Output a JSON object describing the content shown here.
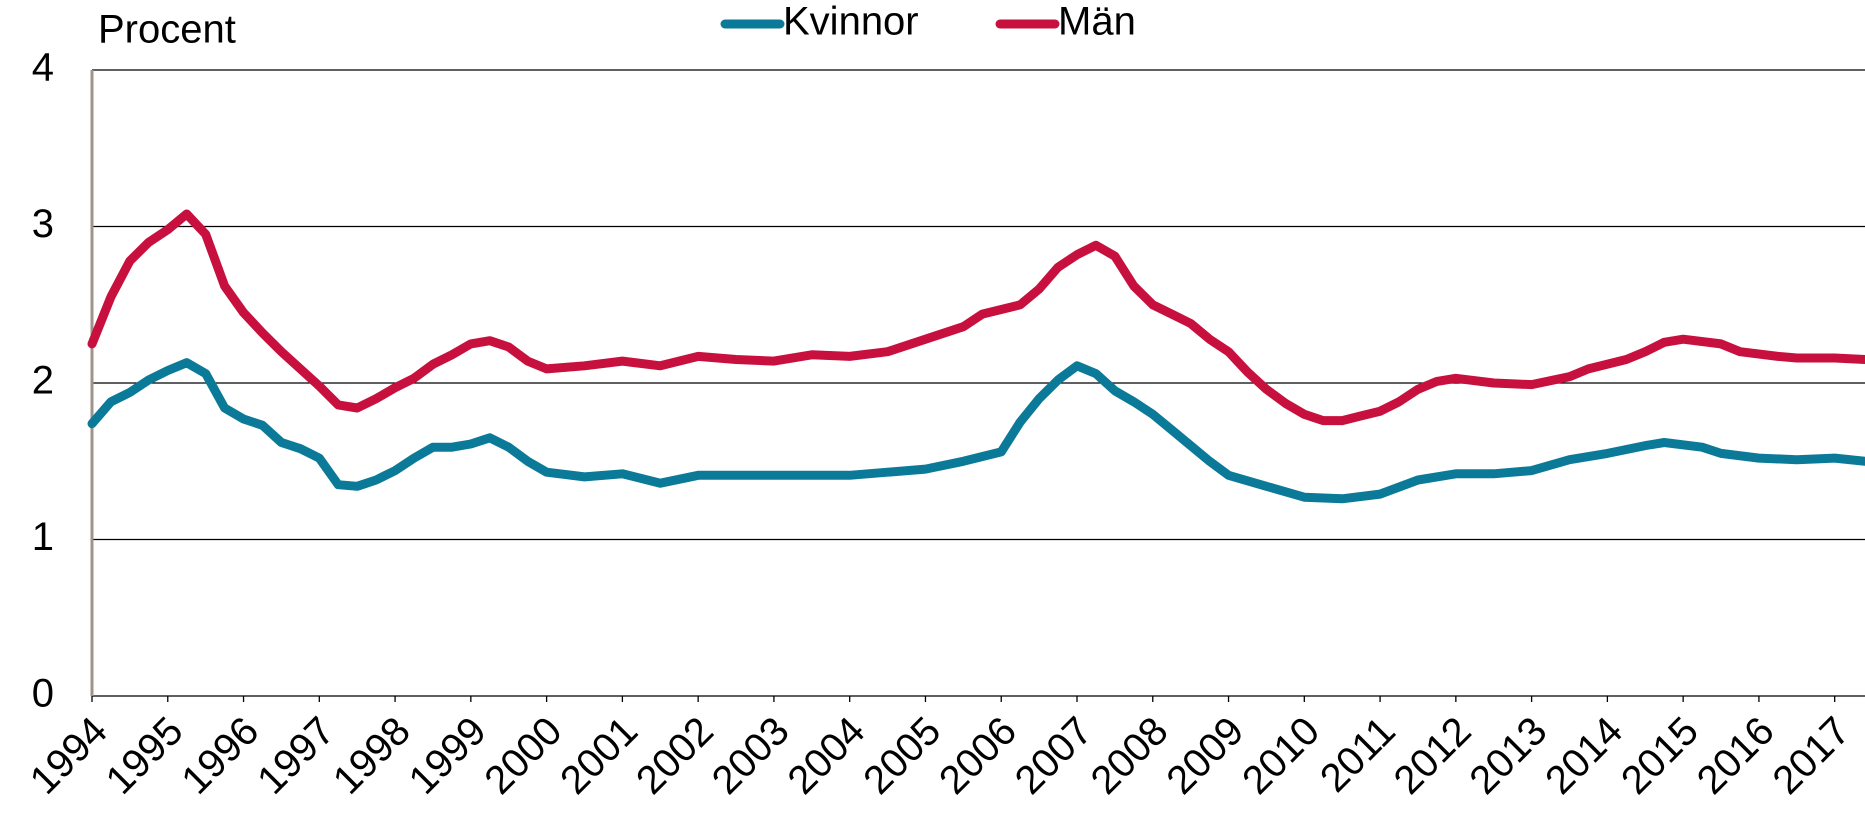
{
  "chart_data": {
    "type": "line",
    "y_label": "Procent",
    "xlim": [
      1994,
      2017.4
    ],
    "xticks": [
      1994,
      1995,
      1996,
      1997,
      1998,
      1999,
      2000,
      2001,
      2002,
      2003,
      2004,
      2005,
      2006,
      2007,
      2008,
      2009,
      2010,
      2011,
      2012,
      2013,
      2014,
      2015,
      2016,
      2017
    ],
    "ylim": [
      0,
      4
    ],
    "yticks": [
      0,
      1,
      2,
      3,
      4
    ],
    "grid": true,
    "series": [
      {
        "name": "Kvinnor",
        "color": "#0b7a98",
        "x": [
          1994,
          1994.25,
          1994.5,
          1994.75,
          1995,
          1995.25,
          1995.5,
          1995.75,
          1996,
          1996.25,
          1996.5,
          1996.75,
          1997,
          1997.25,
          1997.5,
          1997.75,
          1998,
          1998.25,
          1998.5,
          1998.75,
          1999,
          1999.25,
          1999.5,
          1999.75,
          2000,
          2000.5,
          2001,
          2001.5,
          2002,
          2002.5,
          2003,
          2003.5,
          2004,
          2004.5,
          2005,
          2005.5,
          2006,
          2006.25,
          2006.5,
          2006.75,
          2007,
          2007.25,
          2007.5,
          2007.75,
          2008,
          2008.25,
          2008.5,
          2008.75,
          2009,
          2009.5,
          2010,
          2010.5,
          2011,
          2011.5,
          2012,
          2012.5,
          2013,
          2013.5,
          2014,
          2014.5,
          2014.75,
          2015.25,
          2015.5,
          2016,
          2016.5,
          2017,
          2017.4
        ],
        "values": [
          1.74,
          1.88,
          1.94,
          2.02,
          2.08,
          2.13,
          2.06,
          1.84,
          1.77,
          1.73,
          1.62,
          1.58,
          1.52,
          1.35,
          1.34,
          1.38,
          1.44,
          1.52,
          1.59,
          1.59,
          1.61,
          1.65,
          1.59,
          1.5,
          1.43,
          1.4,
          1.42,
          1.36,
          1.41,
          1.41,
          1.41,
          1.41,
          1.41,
          1.43,
          1.45,
          1.5,
          1.56,
          1.75,
          1.9,
          2.02,
          2.11,
          2.06,
          1.95,
          1.88,
          1.8,
          1.7,
          1.6,
          1.5,
          1.41,
          1.34,
          1.27,
          1.26,
          1.29,
          1.38,
          1.42,
          1.42,
          1.44,
          1.51,
          1.55,
          1.6,
          1.62,
          1.59,
          1.55,
          1.52,
          1.51,
          1.52,
          1.5
        ]
      },
      {
        "name": "Män",
        "color": "#c8103f",
        "x": [
          1994,
          1994.25,
          1994.5,
          1994.75,
          1995,
          1995.25,
          1995.5,
          1995.75,
          1996,
          1996.25,
          1996.5,
          1996.75,
          1997,
          1997.25,
          1997.5,
          1997.75,
          1998,
          1998.25,
          1998.5,
          1998.75,
          1999,
          1999.25,
          1999.5,
          1999.75,
          2000,
          2000.5,
          2001,
          2001.5,
          2002,
          2002.5,
          2003,
          2003.5,
          2004,
          2004.5,
          2005,
          2005.5,
          2005.75,
          2006.25,
          2006.5,
          2006.75,
          2007,
          2007.25,
          2007.5,
          2007.75,
          2008,
          2008.25,
          2008.5,
          2008.75,
          2009,
          2009.25,
          2009.5,
          2009.75,
          2010,
          2010.25,
          2010.5,
          2010.75,
          2011,
          2011.25,
          2011.5,
          2011.75,
          2012,
          2012.5,
          2013,
          2013.5,
          2013.75,
          2014.25,
          2014.5,
          2014.75,
          2015,
          2015.5,
          2015.75,
          2016.25,
          2016.5,
          2017,
          2017.4
        ],
        "values": [
          2.25,
          2.55,
          2.78,
          2.9,
          2.98,
          3.08,
          2.95,
          2.62,
          2.45,
          2.32,
          2.2,
          2.09,
          1.98,
          1.86,
          1.84,
          1.9,
          1.97,
          2.03,
          2.12,
          2.18,
          2.25,
          2.27,
          2.23,
          2.14,
          2.09,
          2.11,
          2.14,
          2.11,
          2.17,
          2.15,
          2.14,
          2.18,
          2.17,
          2.2,
          2.28,
          2.36,
          2.44,
          2.5,
          2.6,
          2.74,
          2.82,
          2.88,
          2.81,
          2.62,
          2.5,
          2.44,
          2.38,
          2.28,
          2.2,
          2.07,
          1.96,
          1.87,
          1.8,
          1.76,
          1.76,
          1.79,
          1.82,
          1.88,
          1.96,
          2.01,
          2.03,
          2.0,
          1.99,
          2.04,
          2.09,
          2.15,
          2.2,
          2.26,
          2.28,
          2.25,
          2.2,
          2.17,
          2.16,
          2.16,
          2.15
        ]
      }
    ]
  }
}
